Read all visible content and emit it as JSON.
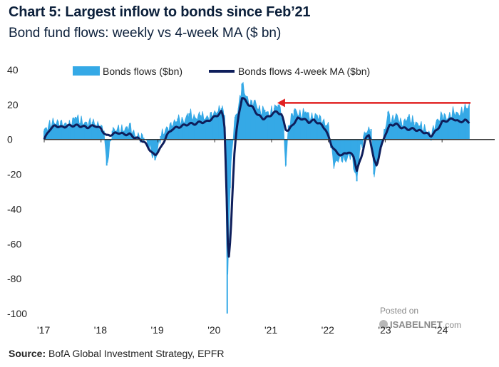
{
  "title": "Chart 5: Largest inflow to bonds since Feb’21",
  "subtitle": "Bond fund flows: weekly vs 4-week MA ($ bn)",
  "source_label": "Source:",
  "source_text": " BofA Global Investment Strategy, EPFR",
  "watermark": {
    "line1": "Posted on",
    "line2": "ISABELNET",
    "line3": ".com"
  },
  "colors": {
    "weekly": "#35a9e6",
    "ma": "#0e1e5b",
    "arrow": "#e02020",
    "axis": "#333333"
  },
  "chart_data": {
    "type": "area",
    "ylim": [
      -100,
      40
    ],
    "yticks": [
      40,
      20,
      0,
      -20,
      -40,
      -60,
      -80,
      -100
    ],
    "xlim": [
      2017.0,
      2024.6
    ],
    "xticks": [
      {
        "value": 2017.0,
        "label": "'17"
      },
      {
        "value": 2018.0,
        "label": "'18"
      },
      {
        "value": 2019.0,
        "label": "'19"
      },
      {
        "value": 2020.0,
        "label": "'20"
      },
      {
        "value": 2021.0,
        "label": "'21"
      },
      {
        "value": 2022.0,
        "label": "'22"
      },
      {
        "value": 2023.0,
        "label": "'23"
      },
      {
        "value": 2024.0,
        "label": "'24"
      }
    ],
    "legend": {
      "placement": "top",
      "weekly_label": "Bonds flows ($bn)",
      "ma_label": "Bonds flows 4-week MA ($bn)"
    },
    "annotation": {
      "type": "arrow",
      "from": {
        "x": 2024.5,
        "y": 21
      },
      "to": {
        "x": 2021.1,
        "y": 21
      }
    },
    "weekly_key": [
      [
        2017.0,
        5
      ],
      [
        2017.15,
        10
      ],
      [
        2017.3,
        9
      ],
      [
        2017.45,
        8
      ],
      [
        2017.55,
        13
      ],
      [
        2017.7,
        9
      ],
      [
        2017.85,
        10
      ],
      [
        2017.95,
        8
      ],
      [
        2018.05,
        5
      ],
      [
        2018.1,
        -15
      ],
      [
        2018.2,
        5
      ],
      [
        2018.3,
        6
      ],
      [
        2018.4,
        5
      ],
      [
        2018.5,
        8
      ],
      [
        2018.6,
        2
      ],
      [
        2018.75,
        1
      ],
      [
        2018.85,
        -4
      ],
      [
        2018.95,
        -12
      ],
      [
        2019.05,
        2
      ],
      [
        2019.15,
        6
      ],
      [
        2019.25,
        8
      ],
      [
        2019.35,
        12
      ],
      [
        2019.45,
        10
      ],
      [
        2019.55,
        15
      ],
      [
        2019.65,
        12
      ],
      [
        2019.75,
        14
      ],
      [
        2019.85,
        12
      ],
      [
        2019.95,
        14
      ],
      [
        2020.05,
        16
      ],
      [
        2020.12,
        18
      ],
      [
        2020.17,
        14
      ],
      [
        2020.2,
        -26
      ],
      [
        2020.22,
        -100
      ],
      [
        2020.24,
        -60
      ],
      [
        2020.27,
        -28
      ],
      [
        2020.31,
        -2
      ],
      [
        2020.36,
        13
      ],
      [
        2020.42,
        18
      ],
      [
        2020.48,
        32
      ],
      [
        2020.55,
        25
      ],
      [
        2020.62,
        20
      ],
      [
        2020.7,
        22
      ],
      [
        2020.8,
        16
      ],
      [
        2020.88,
        17
      ],
      [
        2020.95,
        14
      ],
      [
        2021.05,
        18
      ],
      [
        2021.12,
        20
      ],
      [
        2021.2,
        12
      ],
      [
        2021.25,
        -15
      ],
      [
        2021.3,
        8
      ],
      [
        2021.4,
        17
      ],
      [
        2021.5,
        14
      ],
      [
        2021.6,
        16
      ],
      [
        2021.7,
        12
      ],
      [
        2021.8,
        14
      ],
      [
        2021.9,
        10
      ],
      [
        2022.0,
        8
      ],
      [
        2022.05,
        -5
      ],
      [
        2022.1,
        -15
      ],
      [
        2022.2,
        -10
      ],
      [
        2022.3,
        -12
      ],
      [
        2022.4,
        -8
      ],
      [
        2022.5,
        -24
      ],
      [
        2022.55,
        -6
      ],
      [
        2022.65,
        4
      ],
      [
        2022.75,
        6
      ],
      [
        2022.8,
        -20
      ],
      [
        2022.9,
        -8
      ],
      [
        2023.0,
        6
      ],
      [
        2023.05,
        16
      ],
      [
        2023.1,
        10
      ],
      [
        2023.2,
        14
      ],
      [
        2023.3,
        8
      ],
      [
        2023.4,
        13
      ],
      [
        2023.5,
        10
      ],
      [
        2023.6,
        8
      ],
      [
        2023.7,
        6
      ],
      [
        2023.8,
        2
      ],
      [
        2023.9,
        10
      ],
      [
        2024.0,
        14
      ],
      [
        2024.1,
        12
      ],
      [
        2024.2,
        16
      ],
      [
        2024.3,
        14
      ],
      [
        2024.4,
        18
      ],
      [
        2024.47,
        19
      ]
    ],
    "ma_key": [
      [
        2017.0,
        0
      ],
      [
        2017.1,
        6
      ],
      [
        2017.2,
        8
      ],
      [
        2017.3,
        7
      ],
      [
        2017.45,
        8
      ],
      [
        2017.6,
        8
      ],
      [
        2017.75,
        7
      ],
      [
        2017.9,
        8
      ],
      [
        2018.0,
        6
      ],
      [
        2018.1,
        2
      ],
      [
        2018.2,
        3
      ],
      [
        2018.3,
        4
      ],
      [
        2018.4,
        3
      ],
      [
        2018.5,
        3
      ],
      [
        2018.6,
        1
      ],
      [
        2018.7,
        0
      ],
      [
        2018.8,
        -3
      ],
      [
        2018.9,
        -8
      ],
      [
        2018.95,
        -9
      ],
      [
        2019.05,
        -5
      ],
      [
        2019.15,
        2
      ],
      [
        2019.25,
        6
      ],
      [
        2019.35,
        7
      ],
      [
        2019.45,
        8
      ],
      [
        2019.55,
        9
      ],
      [
        2019.65,
        9
      ],
      [
        2019.75,
        10
      ],
      [
        2019.85,
        10
      ],
      [
        2019.95,
        12
      ],
      [
        2020.05,
        14
      ],
      [
        2020.12,
        16
      ],
      [
        2020.17,
        10
      ],
      [
        2020.2,
        -20
      ],
      [
        2020.23,
        -60
      ],
      [
        2020.25,
        -68
      ],
      [
        2020.28,
        -55
      ],
      [
        2020.31,
        -32
      ],
      [
        2020.34,
        -10
      ],
      [
        2020.38,
        4
      ],
      [
        2020.43,
        16
      ],
      [
        2020.48,
        24
      ],
      [
        2020.55,
        22
      ],
      [
        2020.6,
        20
      ],
      [
        2020.68,
        18
      ],
      [
        2020.76,
        14
      ],
      [
        2020.85,
        12
      ],
      [
        2020.95,
        13
      ],
      [
        2021.02,
        15
      ],
      [
        2021.1,
        16
      ],
      [
        2021.18,
        14
      ],
      [
        2021.25,
        6
      ],
      [
        2021.3,
        5
      ],
      [
        2021.38,
        9
      ],
      [
        2021.46,
        12
      ],
      [
        2021.55,
        12
      ],
      [
        2021.65,
        10
      ],
      [
        2021.75,
        11
      ],
      [
        2021.85,
        9
      ],
      [
        2021.95,
        6
      ],
      [
        2022.05,
        -3
      ],
      [
        2022.15,
        -8
      ],
      [
        2022.25,
        -9
      ],
      [
        2022.35,
        -7
      ],
      [
        2022.45,
        -10
      ],
      [
        2022.5,
        -18
      ],
      [
        2022.58,
        -10
      ],
      [
        2022.65,
        0
      ],
      [
        2022.72,
        3
      ],
      [
        2022.8,
        -12
      ],
      [
        2022.85,
        -15
      ],
      [
        2022.92,
        -5
      ],
      [
        2023.0,
        3
      ],
      [
        2023.08,
        8
      ],
      [
        2023.18,
        9
      ],
      [
        2023.28,
        7
      ],
      [
        2023.38,
        6
      ],
      [
        2023.5,
        6
      ],
      [
        2023.6,
        5
      ],
      [
        2023.7,
        4
      ],
      [
        2023.8,
        2
      ],
      [
        2023.9,
        5
      ],
      [
        2024.0,
        10
      ],
      [
        2024.1,
        11
      ],
      [
        2024.2,
        12
      ],
      [
        2024.3,
        10
      ],
      [
        2024.4,
        11
      ],
      [
        2024.47,
        10
      ]
    ]
  }
}
